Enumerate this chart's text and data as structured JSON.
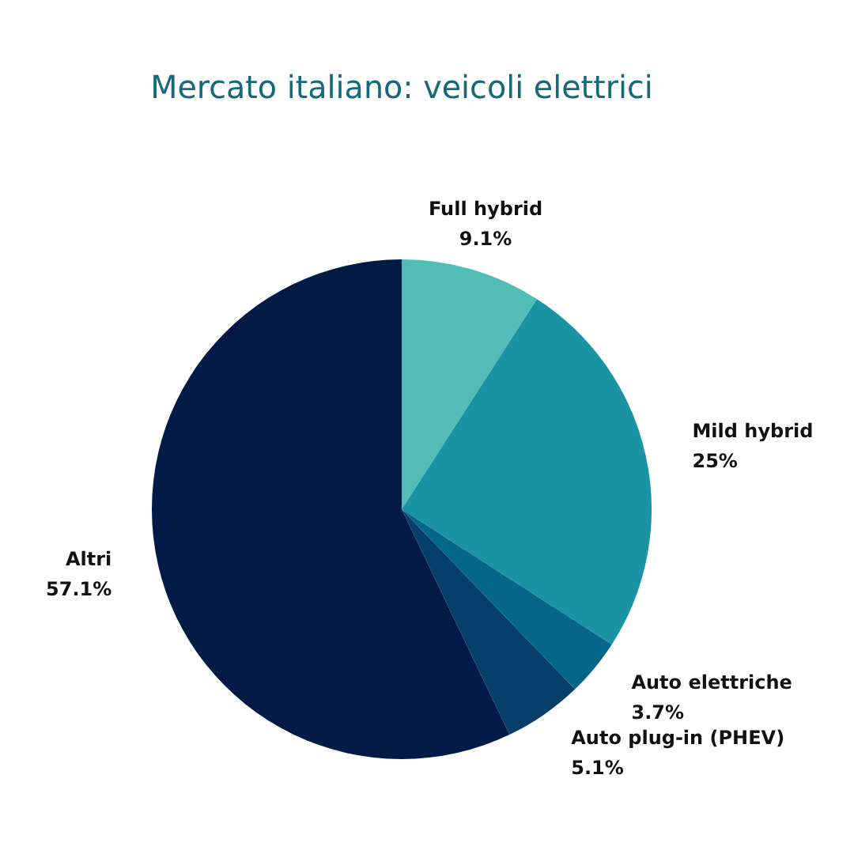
{
  "chart_data": {
    "type": "pie",
    "title": "Mercato italiano: veicoli elettrici",
    "categories": [
      "Full hybrid",
      "Mild hybrid",
      "Auto elettriche",
      "Auto plug-in (PHEV)",
      "Altri"
    ],
    "values": [
      9.1,
      25,
      3.7,
      5.1,
      57.1
    ],
    "value_labels": [
      "9.1%",
      "25%",
      "3.7%",
      "5.1%",
      "57.1%"
    ],
    "colors": [
      "#52bdb6",
      "#1a93a5",
      "#04678a",
      "#053f6a",
      "#021b46"
    ],
    "legend": false
  }
}
